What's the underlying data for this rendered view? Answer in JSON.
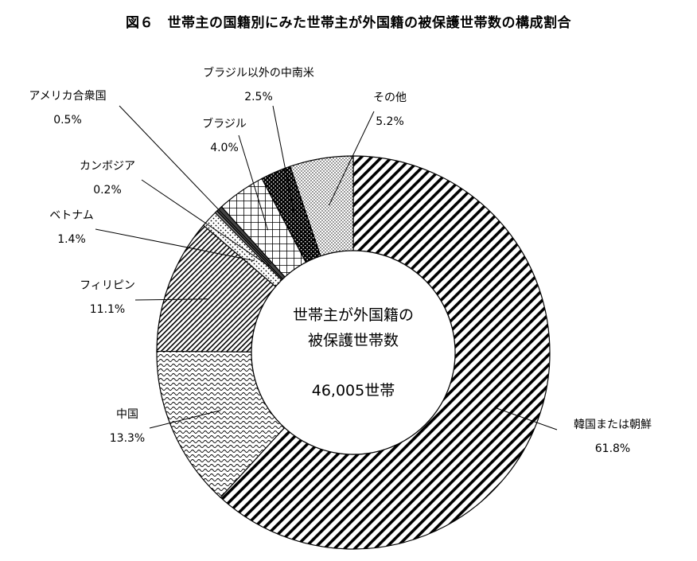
{
  "title": "図６　世帯主の国籍別にみた世帯主が外国籍の被保護世帯数の構成割合",
  "center": {
    "line1": "世帯主が外国籍の",
    "line2": "被保護世帯数",
    "total": "46,005世帯"
  },
  "chart_data": {
    "type": "pie",
    "title": "図６　世帯主の国籍別にみた世帯主が外国籍の被保護世帯数の構成割合",
    "total": 46005,
    "total_unit": "世帯",
    "slices": [
      {
        "name": "韓国または朝鮮",
        "value": 61.8,
        "label": "61.8%",
        "pattern": "diag-wide"
      },
      {
        "name": "中国",
        "value": 13.3,
        "label": "13.3%",
        "pattern": "wavy"
      },
      {
        "name": "フィリピン",
        "value": 11.1,
        "label": "11.1%",
        "pattern": "diag-fine"
      },
      {
        "name": "ベトナム",
        "value": 1.4,
        "label": "1.4%",
        "pattern": "dots-sparse"
      },
      {
        "name": "カンボジア",
        "value": 0.2,
        "label": "0.2%",
        "pattern": "solid-gray"
      },
      {
        "name": "アメリカ合衆国",
        "value": 0.5,
        "label": "0.5%",
        "pattern": "solid-dark"
      },
      {
        "name": "ブラジル",
        "value": 4.0,
        "label": "4.0%",
        "pattern": "grid"
      },
      {
        "name": "ブラジル以外の中南米",
        "value": 2.5,
        "label": "2.5%",
        "pattern": "black-dots"
      },
      {
        "name": "その他",
        "value": 5.2,
        "label": "5.2%",
        "pattern": "dots-dense"
      }
    ],
    "legend": "none",
    "start_direction": "top",
    "order": "clockwise"
  }
}
